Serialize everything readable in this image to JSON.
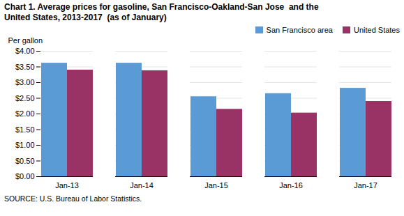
{
  "chart_data": {
    "type": "bar",
    "title": "Chart 1. Average prices for gasoline, San Francisco-Oakland-San Jose  and the\nUnited States, 2013-2017  (as of January)",
    "ylabel": "Per gallon",
    "source": "SOURCE: U.S. Bureau of Labor Statistics.",
    "categories": [
      "Jan-13",
      "Jan-14",
      "Jan-15",
      "Jan-16",
      "Jan-17"
    ],
    "series": [
      {
        "name": "San Francisco area",
        "color": "#5B9BD5",
        "values": [
          3.62,
          3.62,
          2.55,
          2.65,
          2.82
        ]
      },
      {
        "name": "United States",
        "color": "#993366",
        "values": [
          3.4,
          3.38,
          2.15,
          2.03,
          2.4
        ]
      }
    ],
    "ylim": [
      0,
      4.0
    ],
    "yticks": [
      {
        "value": 0.0,
        "label": "$0.00"
      },
      {
        "value": 0.5,
        "label": "$0.50"
      },
      {
        "value": 1.0,
        "label": "$1.00"
      },
      {
        "value": 1.5,
        "label": "$1.50"
      },
      {
        "value": 2.0,
        "label": "$2.00"
      },
      {
        "value": 2.5,
        "label": "$2.50"
      },
      {
        "value": 3.0,
        "label": "$3.00"
      },
      {
        "value": 3.5,
        "label": "$3.50"
      },
      {
        "value": 4.0,
        "label": "$4.00"
      }
    ],
    "grid": true,
    "legend": "upper right"
  }
}
